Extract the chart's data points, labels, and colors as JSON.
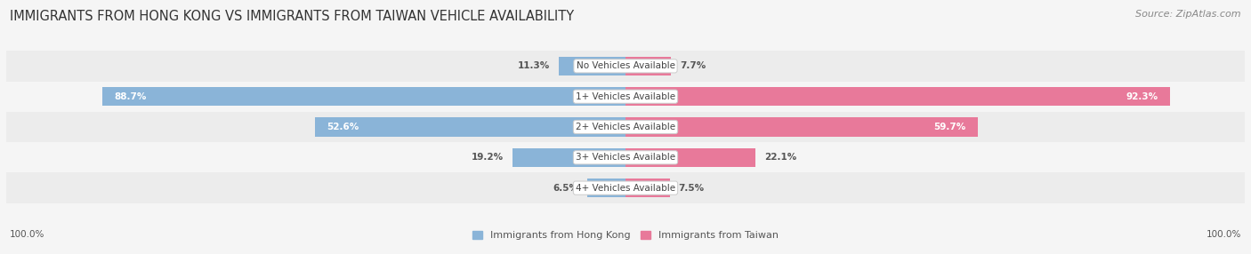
{
  "title": "IMMIGRANTS FROM HONG KONG VS IMMIGRANTS FROM TAIWAN VEHICLE AVAILABILITY",
  "source": "Source: ZipAtlas.com",
  "categories": [
    "No Vehicles Available",
    "1+ Vehicles Available",
    "2+ Vehicles Available",
    "3+ Vehicles Available",
    "4+ Vehicles Available"
  ],
  "hong_kong_values": [
    11.3,
    88.7,
    52.6,
    19.2,
    6.5
  ],
  "taiwan_values": [
    7.7,
    92.3,
    59.7,
    22.1,
    7.5
  ],
  "hk_color": "#8ab4d8",
  "tw_color": "#e8799a",
  "title_fontsize": 10.5,
  "source_fontsize": 8,
  "value_fontsize": 7.5,
  "legend_fontsize": 8,
  "footer_fontsize": 7.5,
  "bar_height": 0.62,
  "row_colors": [
    "#ececec",
    "#f5f5f5",
    "#ececec",
    "#f5f5f5",
    "#ececec"
  ],
  "background_color": "#f5f5f5",
  "max_val": 100.0
}
